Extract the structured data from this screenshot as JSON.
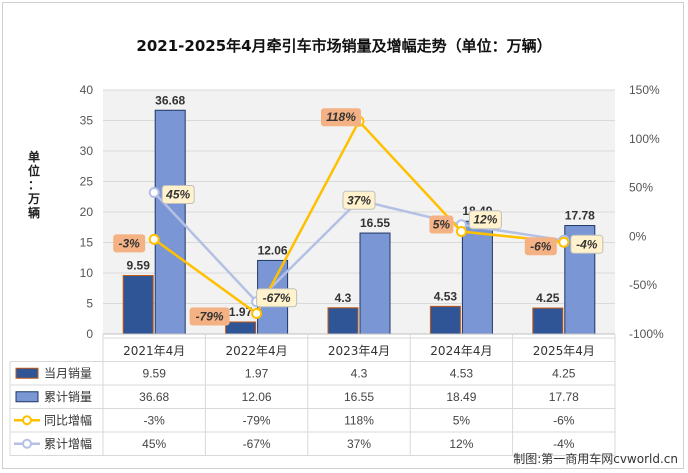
{
  "title": "2021-2025年4月牵引车市场销量及增幅走势（单位：万辆）",
  "ylabel_chars": [
    "单",
    "位",
    "：",
    "万",
    "辆"
  ],
  "source": "制图:第一商用车网cvworld.cn",
  "colors": {
    "monthly": "#2f5597",
    "monthly_border": "#c55a11",
    "cumulative": "#7b96d4",
    "cumulative_border": "#1f3864",
    "yoy": "#ffc000",
    "cum_growth": "#b4c0e4",
    "yoy_label_bg": "#f4b183",
    "cum_label_bg": "#fff2cc",
    "plot_bg": "#f2f2f2"
  },
  "chart_data": {
    "type": "bar",
    "title": "2021-2025年4月牵引车市场销量及增幅走势（单位：万辆）",
    "categories": [
      "2021年4月",
      "2022年4月",
      "2023年4月",
      "2024年4月",
      "2025年4月"
    ],
    "ylabel": "单位：万辆",
    "ylim": [
      0,
      40
    ],
    "yticks": [
      0,
      5,
      10,
      15,
      20,
      25,
      30,
      35,
      40
    ],
    "y2lim": [
      -100,
      150
    ],
    "y2ticks": [
      "-100%",
      "-50%",
      "0%",
      "50%",
      "100%",
      "150%"
    ],
    "y2tick_values": [
      -100,
      -50,
      0,
      50,
      100,
      150
    ],
    "grid": true,
    "bar_series": [
      {
        "name": "当月销量",
        "values": [
          9.59,
          1.97,
          4.3,
          4.53,
          4.25
        ],
        "labels": [
          "9.59",
          "1.97",
          "4.3",
          "4.53",
          "4.25"
        ]
      },
      {
        "name": "累计销量",
        "values": [
          36.68,
          12.06,
          16.55,
          18.49,
          17.78
        ],
        "labels": [
          "36.68",
          "12.06",
          "16.55",
          "18.49",
          "17.78"
        ]
      }
    ],
    "line_series": [
      {
        "name": "同比增幅",
        "values": [
          -3,
          -79,
          118,
          5,
          -6
        ],
        "labels": [
          "-3%",
          "-79%",
          "118%",
          "5%",
          "-6%"
        ]
      },
      {
        "name": "累计增幅",
        "values": [
          45,
          -67,
          37,
          12,
          -4
        ],
        "labels": [
          "45%",
          "-67%",
          "37%",
          "12%",
          "-4%"
        ]
      }
    ],
    "legend": "data-table-below"
  }
}
